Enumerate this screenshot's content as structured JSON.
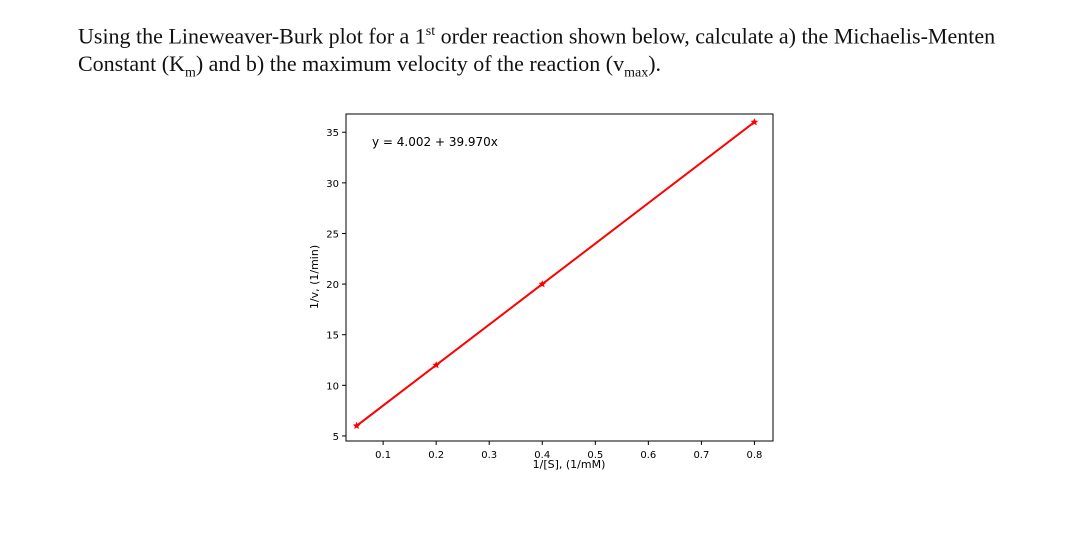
{
  "question": {
    "part1": "Using the Lineweaver-Burk plot for a 1",
    "sup1": "st",
    "part2": " order reaction shown below, calculate a) the Michaelis-Menten Constant (K",
    "sub_km": "m",
    "part3": ") and b) the maximum velocity of the reaction (v",
    "sub_vmax": "max",
    "part4": ")."
  },
  "chart_data": {
    "type": "line",
    "title": "",
    "xlabel": "1/[S], (1/mM)",
    "ylabel": "1/v, (1/min)",
    "annotation": "y = 4.002 + 39.970x",
    "xlim": [
      0.03,
      0.835
    ],
    "ylim": [
      4.5,
      36.8
    ],
    "xticks": [
      0.1,
      0.2,
      0.3,
      0.4,
      0.5,
      0.6,
      0.7,
      0.8
    ],
    "xtick_labels": [
      "0.1",
      "0.2",
      "0.3",
      "0.4",
      "0.5",
      "0.6",
      "0.7",
      "0.8"
    ],
    "yticks": [
      5,
      10,
      15,
      20,
      25,
      30,
      35
    ],
    "ytick_labels": [
      "5",
      "10",
      "15",
      "20",
      "25",
      "30",
      "35"
    ],
    "series": [
      {
        "x": [
          0.05,
          0.2,
          0.4,
          0.8
        ],
        "y": [
          6.0,
          12.0,
          20.0,
          36.0
        ],
        "color": "#ff0000",
        "marker": "star"
      }
    ],
    "grid": false
  }
}
